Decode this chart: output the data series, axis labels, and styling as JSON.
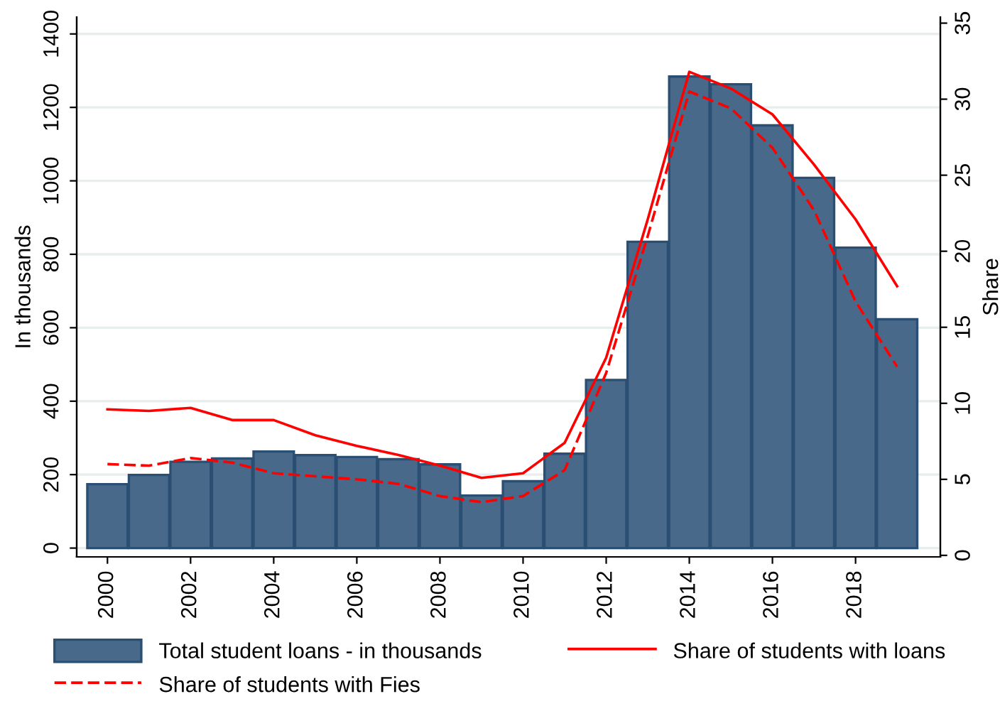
{
  "chart_data": {
    "type": "bar",
    "xlabel": null,
    "ylabel": "In thousands",
    "y2label": "Share",
    "x": [
      2000,
      2001,
      2002,
      2003,
      2004,
      2005,
      2006,
      2007,
      2008,
      2009,
      2010,
      2011,
      2012,
      2013,
      2014,
      2015,
      2016,
      2017,
      2018,
      2019
    ],
    "series": [
      {
        "name": "Total student loans - in thousands",
        "color": "#48698a",
        "values": [
          174,
          199,
          235,
          244,
          263,
          253,
          248,
          242,
          228,
          143,
          182,
          257,
          458,
          834,
          1284,
          1263,
          1151,
          1008,
          818,
          623
        ]
      },
      {
        "name": "Share of students with Fies",
        "type": "line",
        "axis": "y2",
        "line_style": "dashed",
        "color": "#ff0000",
        "values": [
          6.0,
          5.9,
          6.4,
          6.1,
          5.4,
          5.2,
          5.0,
          4.7,
          3.9,
          3.5,
          3.9,
          5.6,
          12.0,
          21.0,
          30.5,
          29.4,
          26.8,
          22.7,
          16.7,
          12.4
        ]
      },
      {
        "name": "Share of students with loans",
        "type": "line",
        "axis": "y2",
        "line_style": "solid",
        "color": "#ff0000",
        "values": [
          9.6,
          9.5,
          9.7,
          8.9,
          8.9,
          7.9,
          7.2,
          6.6,
          5.9,
          5.1,
          5.4,
          7.4,
          13.0,
          22.1,
          31.8,
          30.7,
          29.0,
          25.7,
          22.1,
          17.7
        ]
      }
    ],
    "xlim": [
      1999.26,
      2020.04
    ],
    "xticks": [
      2000,
      2002,
      2004,
      2006,
      2008,
      2010,
      2012,
      2014,
      2016,
      2018
    ],
    "ylim": [
      -24,
      1446
    ],
    "yticks": [
      0,
      200,
      400,
      600,
      800,
      1000,
      1200,
      1400
    ],
    "y2lim": [
      -0.1,
      35.4
    ],
    "y2ticks": [
      0,
      5,
      10,
      15,
      20,
      25,
      30,
      35
    ],
    "grid": "y",
    "legend": "bottom"
  }
}
